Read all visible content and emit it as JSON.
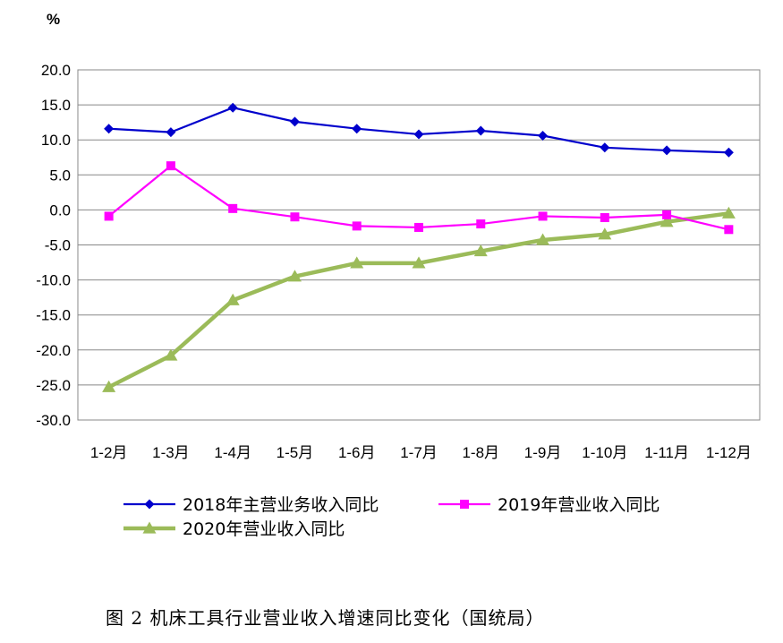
{
  "chart_data": {
    "type": "line",
    "unit_label": "%",
    "categories": [
      "1-2月",
      "1-3月",
      "1-4月",
      "1-5月",
      "1-6月",
      "1-7月",
      "1-8月",
      "1-9月",
      "1-10月",
      "1-11月",
      "1-12月"
    ],
    "ylim": [
      -30,
      20
    ],
    "yticks": [
      20,
      15,
      10,
      5,
      0,
      -5,
      -10,
      -15,
      -20,
      -25,
      -30
    ],
    "ytick_labels": [
      "20.0",
      "15.0",
      "10.0",
      "5.0",
      "0.0",
      "-5.0",
      "-10.0",
      "-15.0",
      "-20.0",
      "-25.0",
      "-30.0"
    ],
    "grid": true,
    "series": [
      {
        "name": "2018年主营业务收入同比",
        "color": "#0000CC",
        "marker": "diamond",
        "values": [
          11.6,
          11.1,
          14.6,
          12.6,
          11.6,
          10.8,
          11.3,
          10.6,
          8.9,
          8.5,
          8.2
        ]
      },
      {
        "name": "2019年营业收入同比",
        "color": "#FF00FF",
        "marker": "square",
        "values": [
          -0.9,
          6.3,
          0.2,
          -1.0,
          -2.3,
          -2.5,
          -2.0,
          -0.9,
          -1.1,
          -0.7,
          -2.8
        ]
      },
      {
        "name": "2020年营业收入同比",
        "color": "#9BBB59",
        "marker": "triangle",
        "values": [
          -25.3,
          -20.8,
          -12.9,
          -9.5,
          -7.6,
          -7.6,
          -5.9,
          -4.3,
          -3.5,
          -1.7,
          -0.5
        ]
      }
    ],
    "legend_position": "bottom",
    "caption": "图 2  机床工具行业营业收入增速同比变化（国统局）"
  }
}
